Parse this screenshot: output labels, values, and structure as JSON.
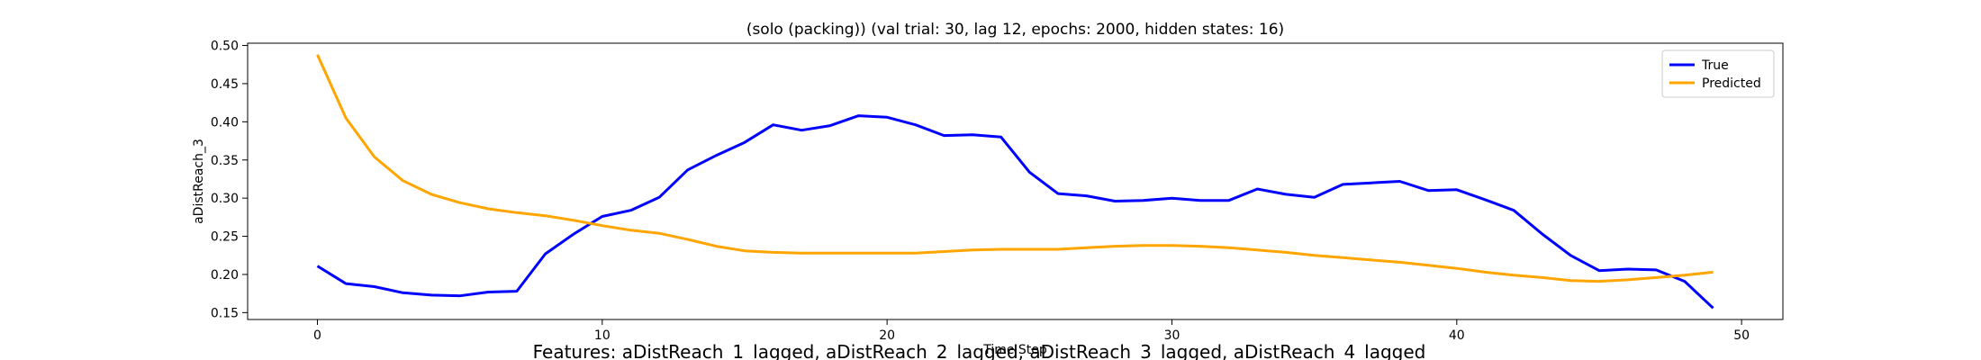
{
  "chart_data": {
    "type": "line",
    "title": "(solo (packing)) (val trial: 30, lag 12, epochs: 2000, hidden states: 16)",
    "xlabel": "Time Step",
    "ylabel": "aDistReach_3",
    "caption": "Features: aDistReach_1_lagged, aDistReach_2_lagged, aDistReach_3_lagged, aDistReach_4_lagged",
    "xlim": [
      -2.45,
      51.45
    ],
    "ylim": [
      0.141,
      0.503
    ],
    "xticks": [
      0,
      10,
      20,
      30,
      40,
      50
    ],
    "yticks": [
      0.15,
      0.2,
      0.25,
      0.3,
      0.35,
      0.4,
      0.45,
      0.5
    ],
    "ytick_labels": [
      "0.15",
      "0.20",
      "0.25",
      "0.30",
      "0.35",
      "0.40",
      "0.45",
      "0.50"
    ],
    "grid": false,
    "legend_position": "upper right",
    "x": [
      0,
      1,
      2,
      3,
      4,
      5,
      6,
      7,
      8,
      9,
      10,
      11,
      12,
      13,
      14,
      15,
      16,
      17,
      18,
      19,
      20,
      21,
      22,
      23,
      24,
      25,
      26,
      27,
      28,
      29,
      30,
      31,
      32,
      33,
      34,
      35,
      36,
      37,
      38,
      39,
      40,
      41,
      42,
      43,
      44,
      45,
      46,
      47,
      48,
      49
    ],
    "series": [
      {
        "name": "True",
        "color": "#0000ff",
        "values": [
          0.211,
          0.188,
          0.184,
          0.176,
          0.173,
          0.172,
          0.177,
          0.178,
          0.227,
          0.253,
          0.276,
          0.284,
          0.301,
          0.337,
          0.356,
          0.373,
          0.396,
          0.389,
          0.395,
          0.408,
          0.406,
          0.396,
          0.382,
          0.383,
          0.38,
          0.334,
          0.306,
          0.303,
          0.296,
          0.297,
          0.3,
          0.297,
          0.297,
          0.312,
          0.305,
          0.301,
          0.318,
          0.32,
          0.322,
          0.31,
          0.311,
          0.298,
          0.284,
          0.253,
          0.225,
          0.205,
          0.207,
          0.206,
          0.191,
          0.156
        ]
      },
      {
        "name": "Predicted",
        "color": "#ffa500",
        "values": [
          0.488,
          0.405,
          0.354,
          0.323,
          0.305,
          0.294,
          0.286,
          0.281,
          0.277,
          0.271,
          0.264,
          0.258,
          0.254,
          0.246,
          0.237,
          0.231,
          0.229,
          0.228,
          0.228,
          0.228,
          0.228,
          0.228,
          0.23,
          0.232,
          0.233,
          0.233,
          0.233,
          0.235,
          0.237,
          0.238,
          0.238,
          0.237,
          0.235,
          0.232,
          0.229,
          0.225,
          0.222,
          0.219,
          0.216,
          0.212,
          0.208,
          0.203,
          0.199,
          0.196,
          0.192,
          0.191,
          0.193,
          0.196,
          0.199,
          0.203
        ]
      }
    ]
  }
}
